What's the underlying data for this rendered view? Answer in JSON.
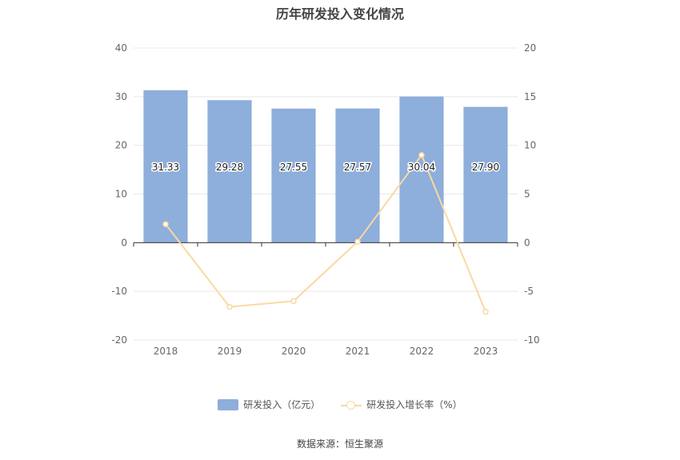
{
  "source": "数据来源：恒生聚源",
  "colors": {
    "bar": "#8eaedb",
    "line": "#f9d9a1",
    "grid": "#e8e8e8",
    "axis": "#333333",
    "text": "#666666"
  },
  "chart_data": {
    "type": "bar",
    "title": "历年研发投入变化情况",
    "categories": [
      "2018",
      "2019",
      "2020",
      "2021",
      "2022",
      "2023"
    ],
    "series": [
      {
        "name": "研发投入（亿元）",
        "type": "bar",
        "axis": "left",
        "values": [
          31.33,
          29.28,
          27.55,
          27.57,
          30.04,
          27.9
        ],
        "labels": [
          "31.33",
          "29.28",
          "27.55",
          "27.57",
          "30.04",
          "27.90"
        ]
      },
      {
        "name": "研发投入增长率（%）",
        "type": "line",
        "axis": "right",
        "values": [
          1.9,
          -6.6,
          -6.0,
          0.1,
          9.0,
          -7.1
        ]
      }
    ],
    "y_left": {
      "min": -20,
      "max": 40,
      "ticks": [
        "-20",
        "-10",
        "0",
        "10",
        "20",
        "30",
        "40"
      ]
    },
    "y_right": {
      "min": -10,
      "max": 20,
      "ticks": [
        "-10",
        "-5",
        "0",
        "5",
        "10",
        "15",
        "20"
      ]
    },
    "grid": true,
    "legend": "bottom"
  }
}
